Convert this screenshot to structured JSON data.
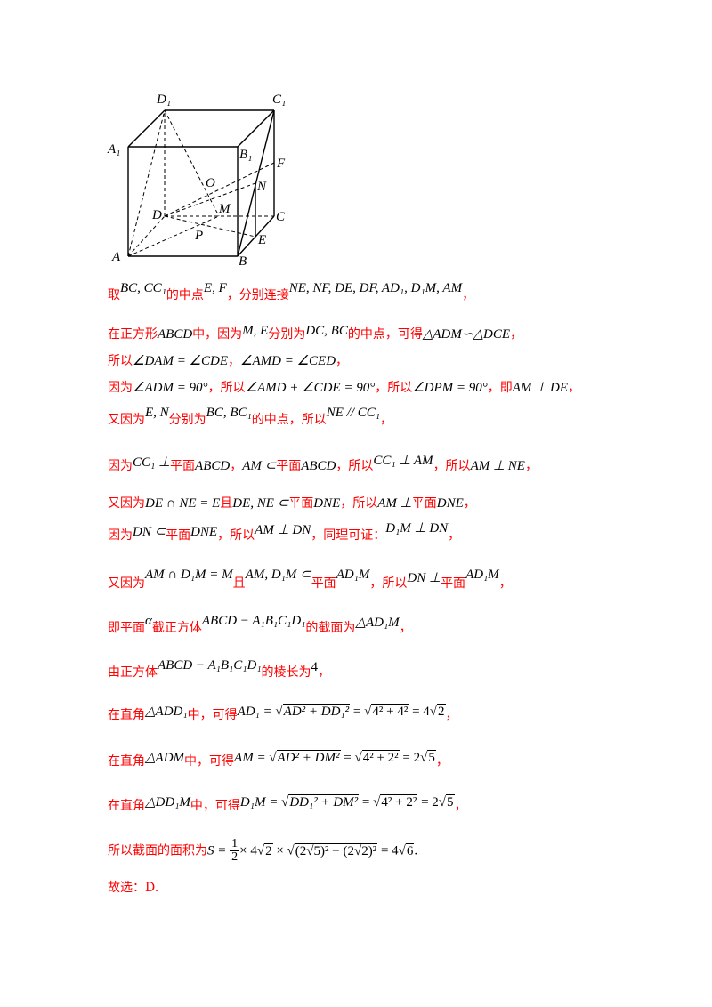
{
  "figure": {
    "labels": {
      "D1": "D₁",
      "C1": "C₁",
      "A1": "A₁",
      "B1": "B₁",
      "F": "F",
      "O": "O",
      "N": "N",
      "D": "D",
      "M": "M",
      "C": "C",
      "P": "P",
      "E": "E",
      "A": "A",
      "B": "B"
    }
  },
  "lines": {
    "l1": {
      "a": "取",
      "b": "BC, CC₁",
      "c": "的中点",
      "d": "E, F",
      "e": "，分别连接",
      "f": "NE, NF, DE, DF, AD₁, D₁M, AM",
      "g": "，"
    },
    "l2": {
      "a": "在正方形",
      "b": "ABCD",
      "c": "中，因为",
      "d": "M, E",
      "e": "分别为",
      "f": "DC, BC",
      "g": "的中点，可得",
      "h": "△ADM∽△DCE",
      "i": "，"
    },
    "l3": {
      "a": "所以",
      "b": "∠DAM = ∠CDE",
      "c": "，",
      "d": "∠AMD = ∠CED",
      "e": "，"
    },
    "l4": {
      "a": "因为",
      "b": "∠ADM = 90°",
      "c": "，所以",
      "d": "∠AMD + ∠CDE = 90°",
      "e": "，所以",
      "f": "∠DPM = 90°",
      "g": "，即",
      "h": "AM ⊥ DE",
      "i": "，"
    },
    "l5": {
      "a": "又因为",
      "b": "E, N",
      "c": "分别为",
      "d": "BC, BC₁",
      "e": "的中点，所以",
      "f": "NE // CC₁",
      "g": "，"
    },
    "l6": {
      "a": "因为",
      "b": "CC₁ ⊥",
      "c": "平面",
      "d": "ABCD",
      "e": "，",
      "f": "AM ⊂",
      "g": "平面",
      "h": "ABCD",
      "i": "，所以",
      "j": "CC₁ ⊥ AM",
      "k": "，所以",
      "l": "AM ⊥ NE",
      "m": "，"
    },
    "l7": {
      "a": "又因为",
      "b": "DE ∩ NE = E",
      "c": "且",
      "d": "DE, NE ⊂",
      "e": "平面",
      "f": "DNE",
      "g": "，所以",
      "h": "AM ⊥",
      "i": "平面",
      "j": "DNE",
      "k": "，"
    },
    "l8": {
      "a": "因为",
      "b": "DN ⊂",
      "c": "平面",
      "d": "DNE",
      "e": "，所以",
      "f": "AM ⊥ DN",
      "g": "，同理可证：",
      "h": "D₁M ⊥ DN",
      "i": "，"
    },
    "l9": {
      "a": "又因为",
      "b": "AM ∩ D₁M = M",
      "c": "且",
      "d": "AM, D₁M ⊂",
      "e": "平面",
      "f": "AD₁M",
      "g": "，所以",
      "h": "DN ⊥",
      "i": "平面",
      "j": "AD₁M",
      "k": "，"
    },
    "l10": {
      "a": "即平面",
      "b": "α",
      "c": "截正方体",
      "d": "ABCD − A₁B₁C₁D₁",
      "e": "的截面为",
      "f": "△AD₁M",
      "g": "，"
    },
    "l11": {
      "a": "由正方体",
      "b": "ABCD − A₁B₁C₁D₁",
      "c": "的棱长为",
      "d": "4",
      "e": "，"
    },
    "l12": {
      "a": "在直角",
      "b": "△ADD₁",
      "c": "中，可得",
      "d": "AD₁ = ",
      "e": "AD² + DD₁²",
      "f": " = ",
      "g": "4² + 4²",
      "h": " = 4",
      "i": "2",
      "j": "，"
    },
    "l13": {
      "a": "在直角",
      "b": "△ADM",
      "c": "中，可得",
      "d": "AM = ",
      "e": "AD² + DM²",
      "f": " = ",
      "g": "4² + 2²",
      "h": " = 2",
      "i": "5",
      "j": "，"
    },
    "l14": {
      "a": "在直角",
      "b": "△DD₁M",
      "c": "中，可得",
      "d": "D₁M = ",
      "e": "DD₁² + DM²",
      "f": " = ",
      "g": "4² + 2²",
      "h": " = 2",
      "i": "5",
      "j": "，"
    },
    "l15": {
      "a": "所以截面的面积为",
      "b": "S = ",
      "num": "1",
      "den": "2",
      "c": "× 4",
      "d": "2",
      "e": " × ",
      "f": "(2√5)² − (2√2)²",
      "g": " = 4",
      "h": "6",
      "i": "."
    },
    "l16": {
      "a": "故选：D."
    }
  }
}
